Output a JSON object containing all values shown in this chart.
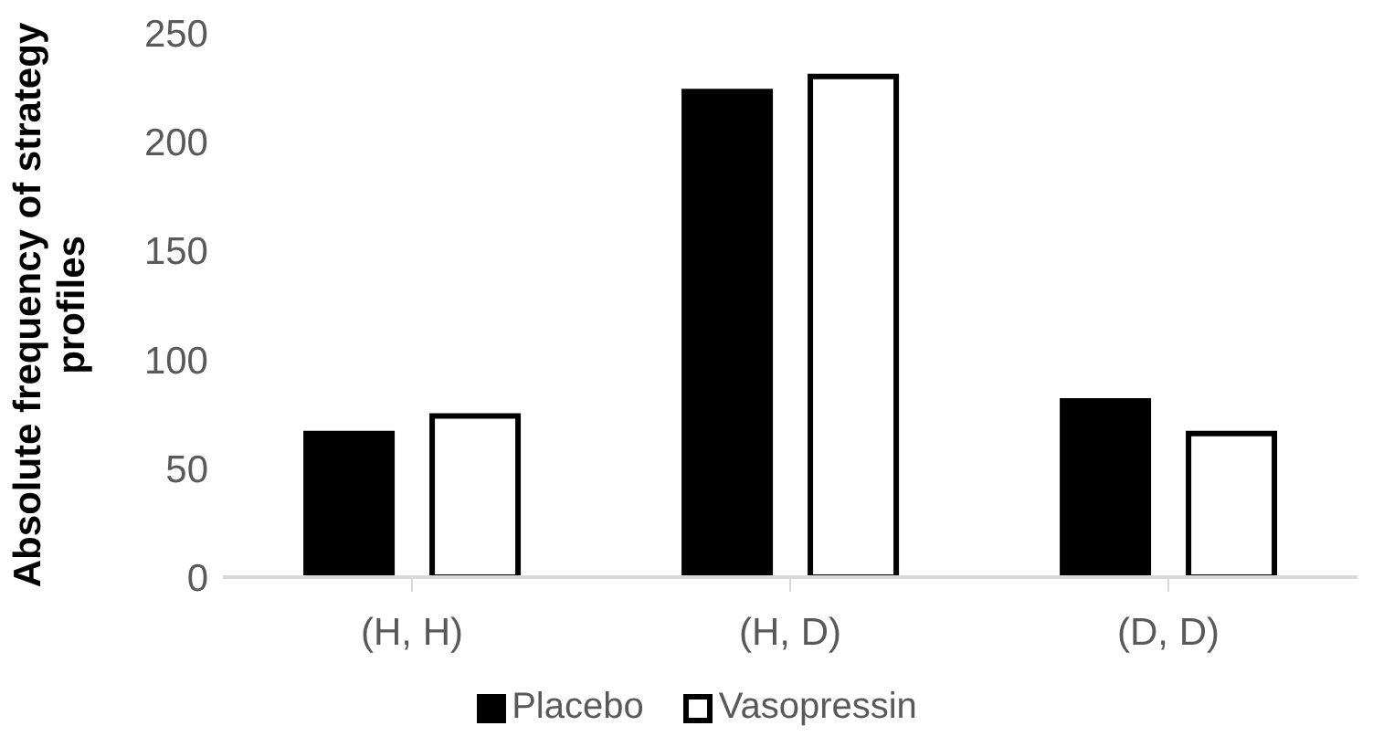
{
  "chart_data": {
    "type": "bar",
    "ylabel": "Absolute frequency of strategy profiles",
    "categories": [
      "(H, H)",
      "(H, D)",
      "(D, D)"
    ],
    "series": [
      {
        "name": "Placebo",
        "color": "#000000",
        "values": [
          66,
          223,
          81
        ]
      },
      {
        "name": "Vasopressin",
        "color": "#ffffff",
        "values": [
          74,
          230,
          66
        ]
      }
    ],
    "ylim": [
      0,
      250
    ],
    "yticks": [
      0,
      50,
      100,
      150,
      200,
      250
    ],
    "grid": false,
    "legend": "bottom"
  }
}
